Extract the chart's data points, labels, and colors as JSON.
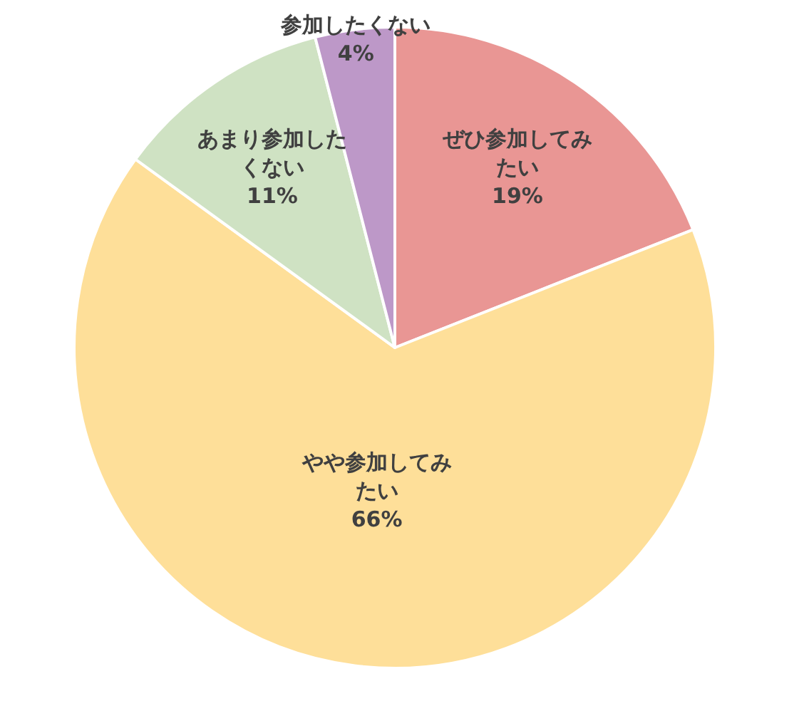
{
  "chart_data": {
    "type": "pie",
    "categories": [
      "ぜひ参加してみたい",
      "やや参加してみたい",
      "あまり参加したくない",
      "参加したくない"
    ],
    "values": [
      19,
      66,
      11,
      4
    ],
    "colors": [
      "#e99694",
      "#fedf99",
      "#cfe2c3",
      "#bd98c8"
    ],
    "value_labels": [
      "19%",
      "66%",
      "11%",
      "4%"
    ]
  }
}
